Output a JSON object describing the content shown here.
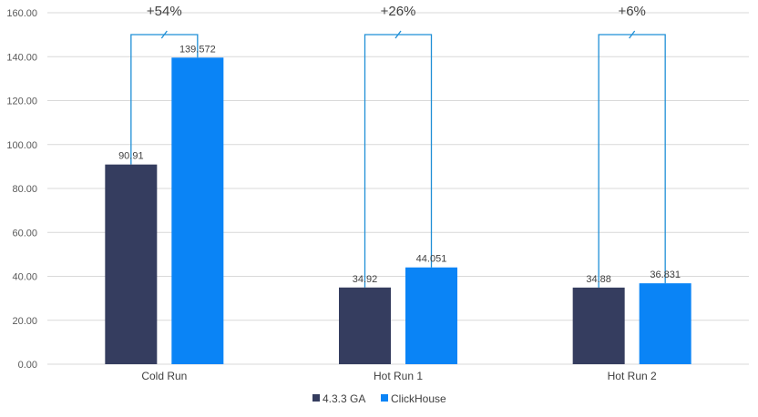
{
  "chart_data": {
    "type": "bar",
    "categories": [
      "Cold Run",
      "Hot Run 1",
      "Hot Run 2"
    ],
    "series": [
      {
        "name": "4.3.3 GA",
        "color": "#353d5f",
        "values": [
          90.91,
          34.92,
          34.88
        ],
        "labels": [
          "90.91",
          "34.92",
          "34.88"
        ]
      },
      {
        "name": "ClickHouse",
        "color": "#0a84f6",
        "values": [
          139.572,
          44.051,
          36.831
        ],
        "labels": [
          "139.572",
          "44.051",
          "36.831"
        ]
      }
    ],
    "ylim": [
      0,
      160
    ],
    "yticks": [
      "0.00",
      "20.00",
      "40.00",
      "60.00",
      "80.00",
      "100.00",
      "120.00",
      "140.00",
      "160.00"
    ],
    "ytick_values": [
      0,
      20,
      40,
      60,
      80,
      100,
      120,
      140,
      160
    ],
    "grid": true,
    "legend_position": "bottom",
    "annotations": [
      "+54%",
      "+26%",
      "+6%"
    ],
    "annotation_color": "#1f8fd6"
  }
}
